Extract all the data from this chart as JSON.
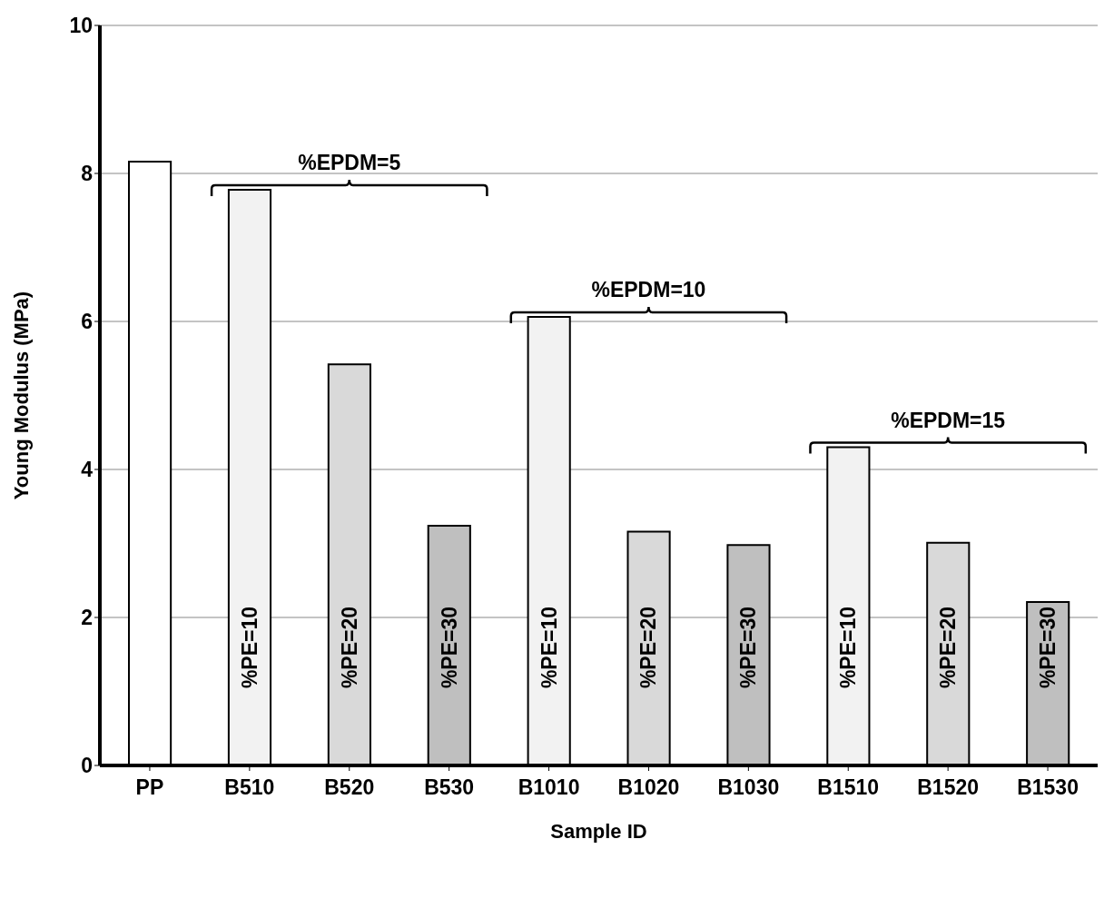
{
  "chart_data": {
    "type": "bar",
    "xlabel": "Sample ID",
    "ylabel": "Young Modulus (MPa)",
    "categories": [
      "PP",
      "B510",
      "B520",
      "B530",
      "B1010",
      "B1020",
      "B1030",
      "B1510",
      "B1520",
      "B1530"
    ],
    "values": [
      8.16,
      7.78,
      5.42,
      3.24,
      6.06,
      3.16,
      2.98,
      4.3,
      3.01,
      2.21
    ],
    "colors": [
      "#ffffff",
      "#f2f2f2",
      "#d9d9d9",
      "#bfbfbf",
      "#f2f2f2",
      "#d9d9d9",
      "#bfbfbf",
      "#f2f2f2",
      "#d9d9d9",
      "#bfbfbf"
    ],
    "ylim": [
      0,
      10
    ],
    "yticks": [
      0,
      2,
      4,
      6,
      8,
      10
    ],
    "grid": "y",
    "annotations": [
      "%EPDM=5",
      "%EPDM=10",
      "%EPDM=15",
      "%PE=10",
      "%PE=20",
      "%PE=30",
      "%PE=10",
      "%PE=20",
      "%PE=30",
      "%PE=10",
      "%PE=20",
      "%PE=30"
    ]
  }
}
